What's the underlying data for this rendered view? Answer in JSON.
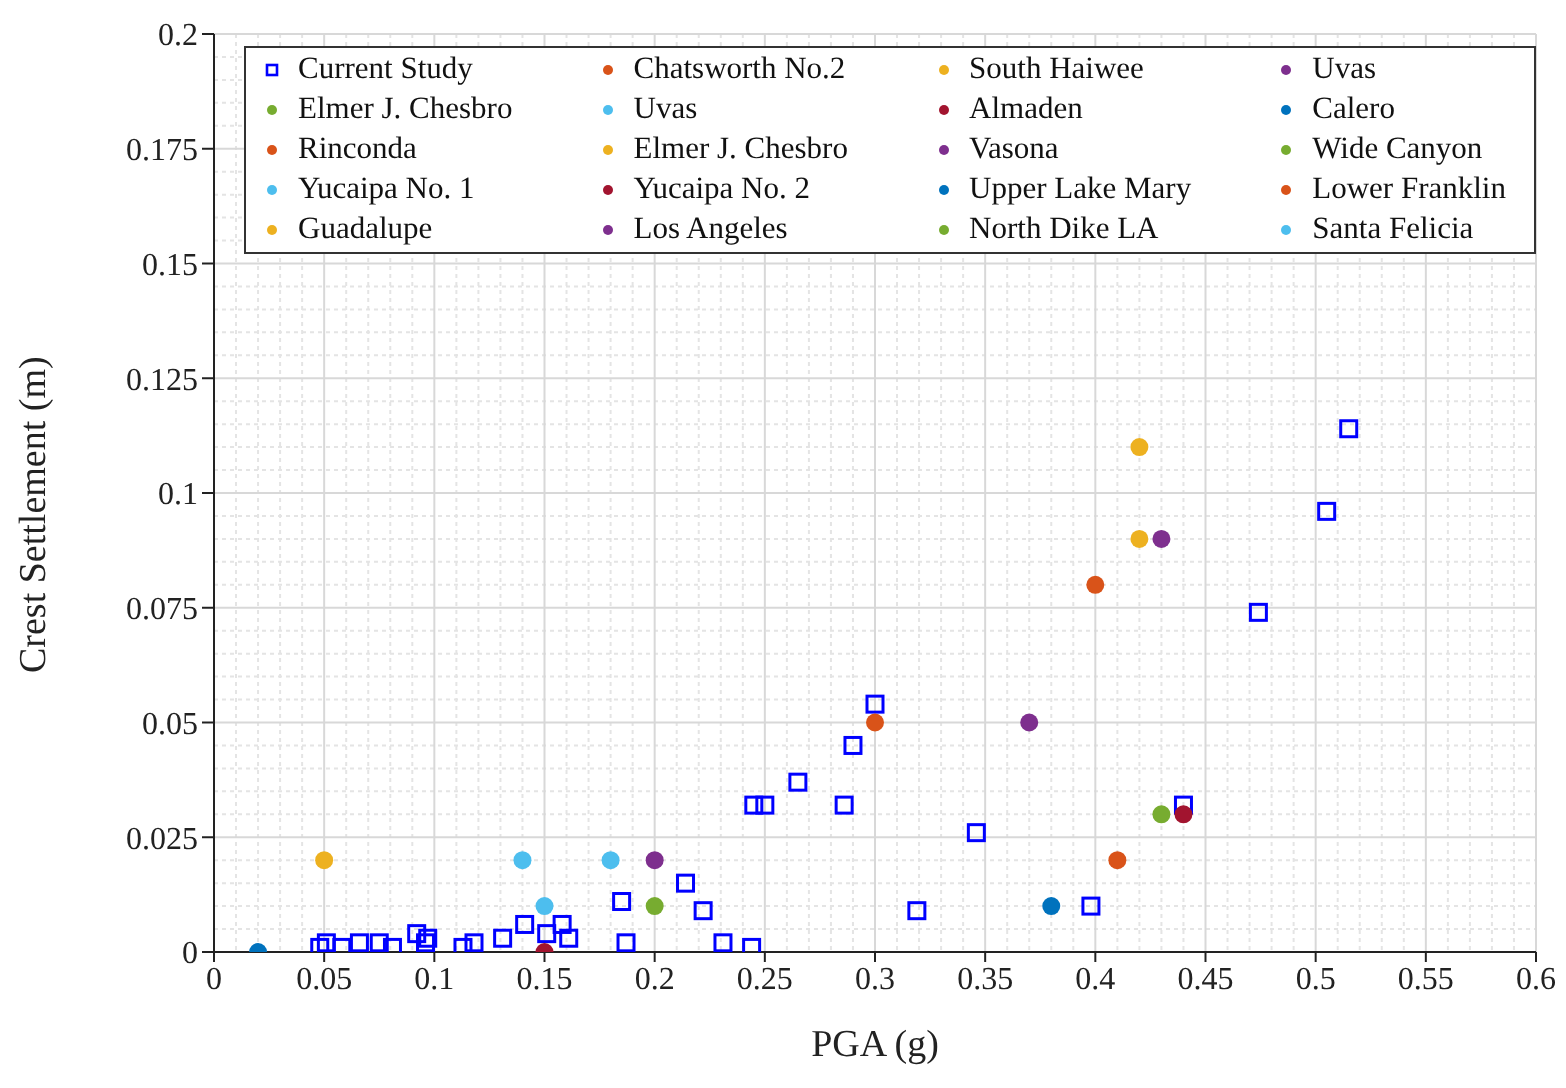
{
  "chart_data": {
    "type": "scatter",
    "xlabel": "PGA (g)",
    "ylabel": "Crest Settlement (m)",
    "xlim": [
      0,
      0.6
    ],
    "xticks": [
      0,
      0.05,
      0.1,
      0.15,
      0.2,
      0.25,
      0.3,
      0.35,
      0.4,
      0.45,
      0.5,
      0.55,
      0.6
    ],
    "ylim": [
      0,
      0.2
    ],
    "yticks": [
      0,
      0.025,
      0.05,
      0.075,
      0.1,
      0.125,
      0.15,
      0.175,
      0.2
    ],
    "grid": true,
    "legend": "top",
    "series": [
      {
        "name": "Current Study",
        "color": "#0000ff",
        "marker": "square",
        "x": [
          0.048,
          0.051,
          0.058,
          0.066,
          0.075,
          0.081,
          0.092,
          0.097,
          0.096,
          0.113,
          0.118,
          0.131,
          0.141,
          0.151,
          0.158,
          0.161,
          0.185,
          0.187,
          0.214,
          0.222,
          0.231,
          0.244,
          0.245,
          0.25,
          0.265,
          0.286,
          0.29,
          0.3,
          0.319,
          0.346,
          0.398,
          0.44,
          0.474,
          0.505,
          0.515
        ],
        "values": [
          0.001,
          0.002,
          0.001,
          0.002,
          0.002,
          0.001,
          0.004,
          0.003,
          0.002,
          0.001,
          0.002,
          0.003,
          0.006,
          0.004,
          0.006,
          0.003,
          0.011,
          0.002,
          0.015,
          0.009,
          0.002,
          0.001,
          0.032,
          0.032,
          0.037,
          0.032,
          0.045,
          0.054,
          0.009,
          0.026,
          0.01,
          0.032,
          0.074,
          0.096,
          0.114
        ]
      },
      {
        "name": "Chatsworth No.2",
        "color": "#d95319",
        "marker": "circle",
        "x": [
          0.3
        ],
        "values": [
          0.05
        ]
      },
      {
        "name": "South Haiwee",
        "color": "#edb120",
        "marker": "circle",
        "x": [
          0.05
        ],
        "values": [
          0.02
        ]
      },
      {
        "name": "Uvas",
        "color": "#7e2f8e",
        "marker": "circle",
        "x": [
          0.2
        ],
        "values": [
          0.02
        ]
      },
      {
        "name": "Elmer J. Chesbro",
        "color": "#77ac30",
        "marker": "circle",
        "x": [
          0.2
        ],
        "values": [
          0.01
        ]
      },
      {
        "name": "Uvas",
        "color": "#4dbeee",
        "marker": "circle",
        "x": [
          0.14
        ],
        "values": [
          0.02
        ]
      },
      {
        "name": "Almaden",
        "color": "#a2142f",
        "marker": "circle",
        "x": [
          0.15
        ],
        "values": [
          0
        ]
      },
      {
        "name": "Calero",
        "color": "#0072bd",
        "marker": "circle",
        "x": [
          0.02
        ],
        "values": [
          0
        ]
      },
      {
        "name": "Rinconda",
        "color": "#d95319",
        "marker": "circle",
        "x": [
          0.4
        ],
        "values": [
          0.08
        ]
      },
      {
        "name": "Elmer J. Chesbro",
        "color": "#edb120",
        "marker": "circle",
        "x": [
          0.42
        ],
        "values": [
          0.09
        ]
      },
      {
        "name": "Vasona",
        "color": "#7e2f8e",
        "marker": "circle",
        "x": [
          0.37
        ],
        "values": [
          0.05
        ]
      },
      {
        "name": "Wide Canyon",
        "color": "#77ac30",
        "marker": "circle",
        "x": [
          0.43
        ],
        "values": [
          0.03
        ]
      },
      {
        "name": "Yucaipa No. 1",
        "color": "#4dbeee",
        "marker": "circle",
        "x": [
          0.15
        ],
        "values": [
          0.01
        ]
      },
      {
        "name": "Yucaipa No. 2",
        "color": "#a2142f",
        "marker": "circle",
        "x": [
          0.44
        ],
        "values": [
          0.03
        ]
      },
      {
        "name": "Upper Lake Mary",
        "color": "#0072bd",
        "marker": "circle",
        "x": [
          0.38
        ],
        "values": [
          0.01
        ]
      },
      {
        "name": "Lower Franklin",
        "color": "#d95319",
        "marker": "circle",
        "x": [
          0.41
        ],
        "values": [
          0.02
        ]
      },
      {
        "name": "Guadalupe",
        "color": "#edb120",
        "marker": "circle",
        "x": [
          0.42
        ],
        "values": [
          0.11
        ]
      },
      {
        "name": "Los Angeles",
        "color": "#7e2f8e",
        "marker": "circle",
        "x": [
          0.43
        ],
        "values": [
          0.09
        ]
      },
      {
        "name": "North Dike LA",
        "color": "#77ac30",
        "marker": "circle",
        "x": [
          null
        ],
        "values": [
          null
        ]
      },
      {
        "name": "Santa Felicia",
        "color": "#4dbeee",
        "marker": "circle",
        "x": [
          0.18
        ],
        "values": [
          0.02
        ]
      }
    ]
  }
}
